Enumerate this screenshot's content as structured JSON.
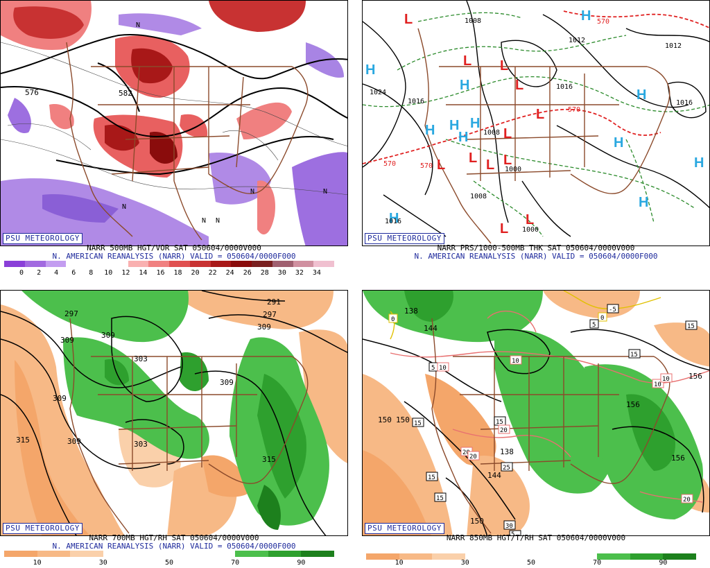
{
  "badge": "PSU METEOROLOGY",
  "panels": {
    "tl": {
      "caption1": "NARR 500MB HGT/VOR SAT 050604/0000V000",
      "caption2": "N. AMERICAN REANALYSIS (NARR) VALID = 050604/0000F000",
      "colorbar": [
        "#8a3fd8",
        "#a26ae0",
        "#c39df0",
        "#ffffff",
        "#ffffff",
        "#ffffff",
        "#f9b0b0",
        "#f08080",
        "#e05050",
        "#c83232",
        "#a81818",
        "#8a0c0c",
        "#7a2020",
        "#a06070",
        "#d090a0",
        "#f0c0d0"
      ],
      "ticks": [
        "0",
        "2",
        "4",
        "6",
        "8",
        "10",
        "12",
        "14",
        "16",
        "18",
        "20",
        "22",
        "24",
        "26",
        "28",
        "30",
        "32",
        "34"
      ],
      "contour_labels": [
        "576",
        "582",
        "N",
        "N",
        "N",
        "N",
        "N",
        "N"
      ]
    },
    "tr": {
      "caption1": "NARR PRS/1000-500MB THK SAT 050604/0000V000",
      "caption2": "N. AMERICAN REANALYSIS (NARR) VALID = 050604/0000F000",
      "contour_labels": [
        "1008",
        "1012",
        "1016",
        "1024",
        "1008",
        "1008",
        "1000",
        "1000",
        "1016",
        "570",
        "570",
        "570",
        "570",
        "1016",
        "1012",
        "1016"
      ],
      "highs": [
        "H",
        "H",
        "H",
        "H",
        "H",
        "H",
        "H",
        "H",
        "H",
        "H",
        "H",
        "H"
      ],
      "lows": [
        "L",
        "L",
        "L",
        "L",
        "L",
        "L",
        "L",
        "L",
        "L",
        "L",
        "L",
        "L"
      ]
    },
    "bl": {
      "caption1": "NARR 700MB HGT/RH SAT 050604/0000V000",
      "caption2": "N. AMERICAN REANALYSIS (NARR) VALID = 050604/0000F000",
      "colorbar": [
        "#f4a66a",
        "#f7b986",
        "#fad0aa",
        "#ffffff",
        "#ffffff",
        "#ffffff",
        "#ffffff",
        "#4cbf4c",
        "#2ea02e",
        "#1d801d"
      ],
      "ticks": [
        "10",
        "30",
        "50",
        "70",
        "90"
      ],
      "contour_labels": [
        "297",
        "291",
        "297",
        "303",
        "309",
        "309",
        "309",
        "309",
        "315",
        "309",
        "303",
        "315",
        "309"
      ]
    },
    "br": {
      "caption1": "NARR 850MB HGT/T/RH SAT 050604/0000V000",
      "caption2": "",
      "colorbar": [
        "#f4a66a",
        "#f7b986",
        "#fad0aa",
        "#ffffff",
        "#ffffff",
        "#ffffff",
        "#ffffff",
        "#4cbf4c",
        "#2ea02e",
        "#1d801d"
      ],
      "ticks": [
        "10",
        "30",
        "50",
        "70",
        "90"
      ],
      "contour_labels": [
        "138",
        "144",
        "156",
        "156",
        "150",
        "150",
        "138",
        "144",
        "150",
        "156"
      ],
      "temp_boxes": [
        "-5",
        "0",
        "5",
        "5",
        "10",
        "10",
        "10",
        "10",
        "15",
        "15",
        "15",
        "15",
        "15",
        "15",
        "20",
        "20",
        "20",
        "20",
        "25",
        "30",
        "5",
        "0"
      ]
    }
  }
}
